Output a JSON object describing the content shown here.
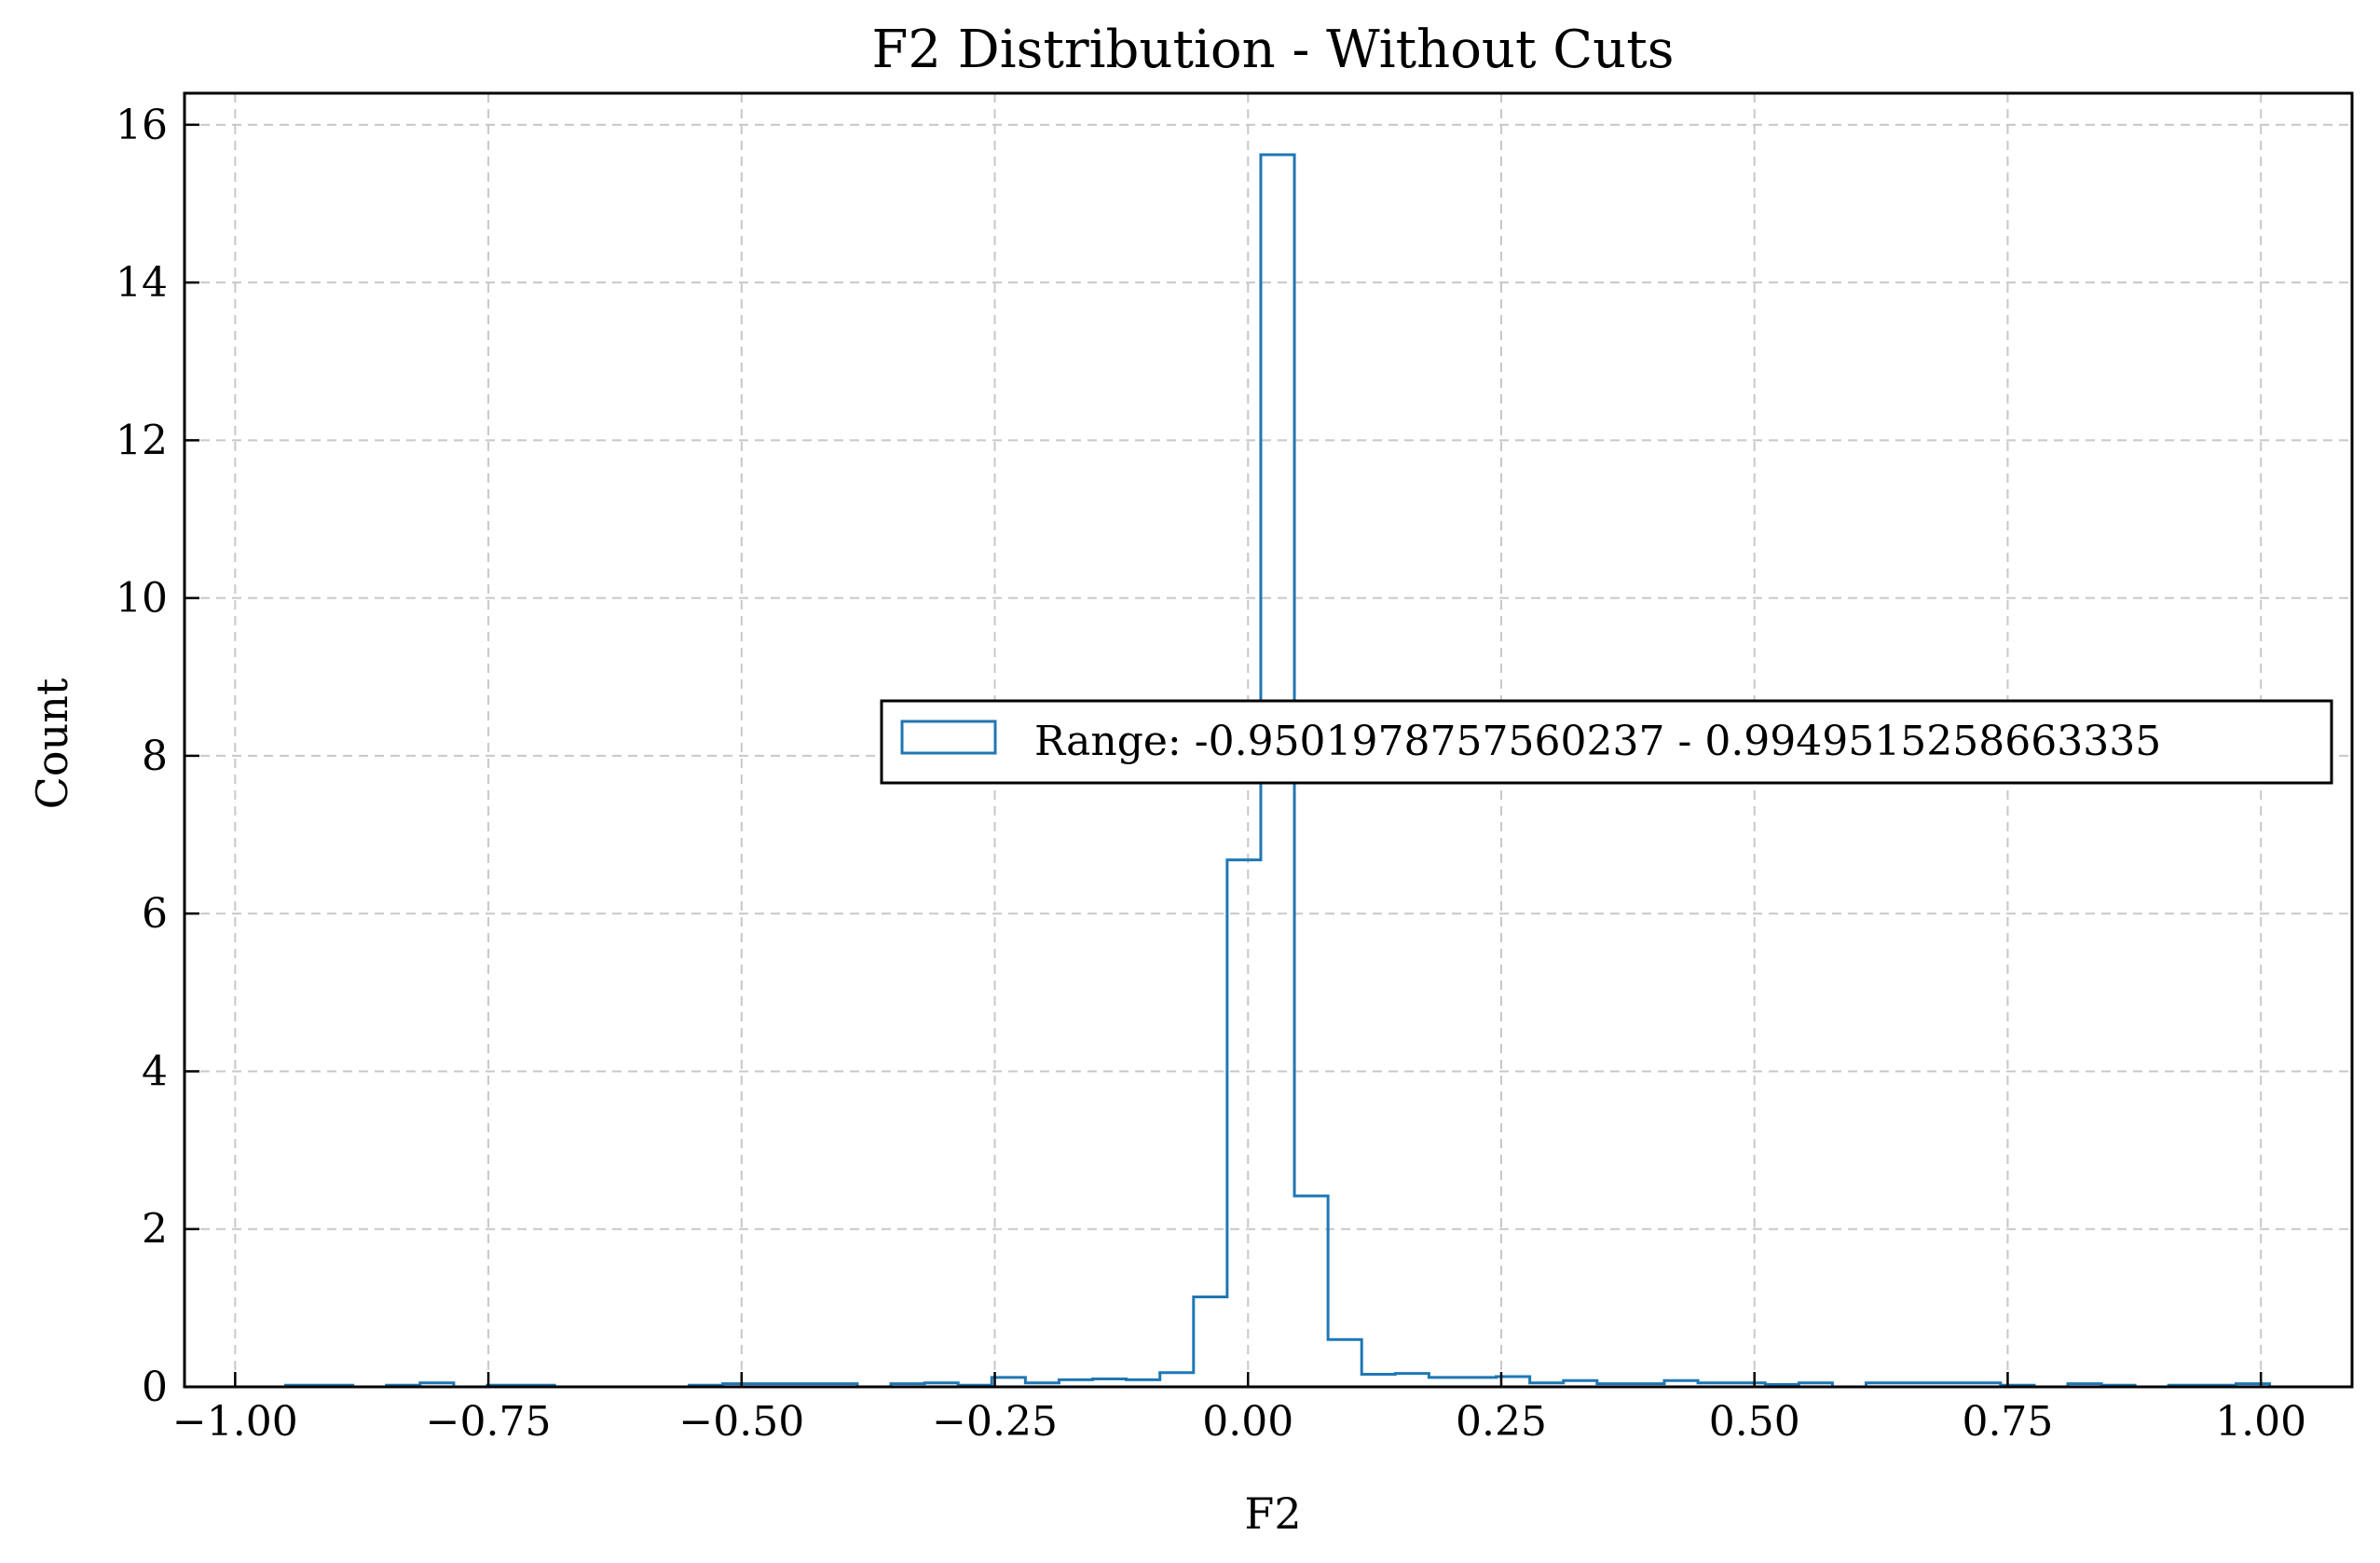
{
  "chart_data": {
    "type": "histogram",
    "title": "F2 Distribution - Without Cuts",
    "xlabel": "F2",
    "ylabel": "Count",
    "xlim": [
      -1.05,
      1.09
    ],
    "ylim": [
      0,
      16.4
    ],
    "x_ticks": [
      -1.0,
      -0.75,
      -0.5,
      -0.25,
      0.0,
      0.25,
      0.5,
      0.75,
      1.0
    ],
    "x_tick_labels": [
      "−1.00",
      "−0.75",
      "−0.50",
      "−0.25",
      "0.00",
      "0.25",
      "0.50",
      "0.75",
      "1.00"
    ],
    "y_ticks": [
      0,
      2,
      4,
      6,
      8,
      10,
      12,
      14,
      16
    ],
    "y_tick_labels": [
      "0",
      "2",
      "4",
      "6",
      "8",
      "10",
      "12",
      "14",
      "16"
    ],
    "grid": true,
    "legend_position": "center-right",
    "series": [
      {
        "name": "Range: -0.9501978757560237 - 0.9949515258663335",
        "color": "#1f77b4",
        "bin_start": -0.9502,
        "bin_width": 0.0332,
        "counts": [
          0.02,
          0.02,
          0.0,
          0.02,
          0.05,
          0.0,
          0.02,
          0.02,
          0.0,
          0.0,
          0.0,
          0.0,
          0.02,
          0.04,
          0.04,
          0.04,
          0.04,
          0.0,
          0.04,
          0.05,
          0.02,
          0.12,
          0.05,
          0.09,
          0.1,
          0.09,
          0.18,
          1.14,
          6.68,
          15.62,
          2.42,
          0.6,
          0.16,
          0.17,
          0.12,
          0.12,
          0.13,
          0.05,
          0.08,
          0.04,
          0.04,
          0.08,
          0.05,
          0.05,
          0.03,
          0.05,
          0.0,
          0.05,
          0.05,
          0.05,
          0.05,
          0.02,
          0.0,
          0.04,
          0.02,
          0.0,
          0.02,
          0.02,
          0.04
        ]
      }
    ]
  }
}
